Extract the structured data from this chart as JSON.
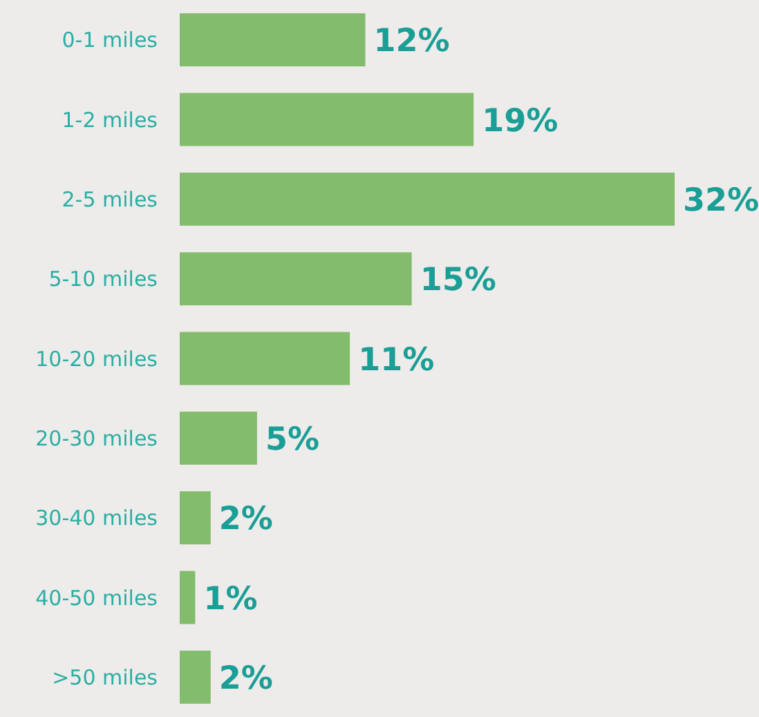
{
  "chart_data": {
    "type": "bar",
    "orientation": "horizontal",
    "tick_labels": "y",
    "categories": [
      "0-1 miles",
      "1-2 miles",
      "2-5 miles",
      "5-10 miles",
      "10-20 miles",
      "20-30 miles",
      "30-40 miles",
      "40-50 miles",
      ">50 miles"
    ],
    "values": [
      12,
      19,
      32,
      15,
      11,
      5,
      2,
      1,
      2
    ],
    "color": "#84bc6e",
    "value_labels": [
      "12%",
      "19%",
      "32%",
      "15%",
      "11%",
      "5%",
      "2%",
      "1%",
      "2%"
    ]
  }
}
